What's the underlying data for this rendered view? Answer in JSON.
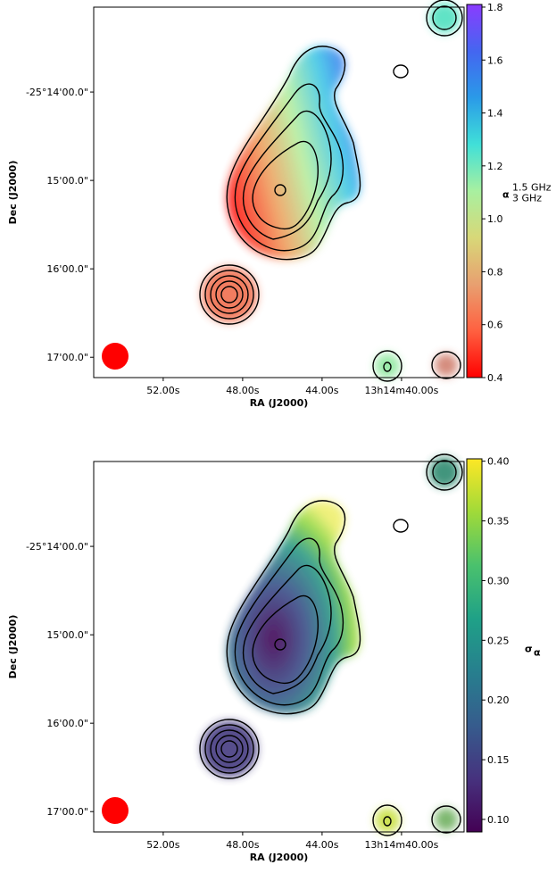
{
  "chart_data": [
    {
      "type": "image",
      "xlabel": "RA (J2000)",
      "ylabel": "Dec (J2000)",
      "xlim": [
        55.5,
        36.85
      ],
      "xticks": [
        {
          "value": 52,
          "label": "52.00s"
        },
        {
          "value": 48,
          "label": "48.00s"
        },
        {
          "value": 44,
          "label": "44.00s"
        },
        {
          "value": 40,
          "label": "13h14m40.00s"
        }
      ],
      "ylim": [
        -17.23,
        -13.04
      ],
      "yticks": [
        {
          "value": -14,
          "label": "-25°14'00.0\""
        },
        {
          "value": -15,
          "label": "15'00.0\""
        },
        {
          "value": -16,
          "label": "16'00.0\""
        },
        {
          "value": -17,
          "label": "17'00.0\""
        }
      ],
      "colorbar": {
        "label": "α",
        "label_sup": "1.5 GHz",
        "label_sub": "3 GHz",
        "lim": [
          0.4,
          1.81
        ],
        "ticks": [
          0.4,
          0.6,
          0.8,
          {
            "value": 1,
            "label": "1.0"
          },
          1.2,
          1.4,
          1.6,
          1.8
        ],
        "colors": [
          "#ff0000",
          "#ff6040",
          "#e8a070",
          "#d8d878",
          "#a8f0a0",
          "#40e0d8",
          "#2a9ae8",
          "#4466f0",
          "#8a3cff"
        ]
      }
    },
    {
      "type": "image",
      "xlabel": "RA (J2000)",
      "ylabel": "Dec (J2000)",
      "xlim": [
        55.5,
        36.85
      ],
      "xticks": [
        {
          "value": 52,
          "label": "52.00s"
        },
        {
          "value": 48,
          "label": "48.00s"
        },
        {
          "value": 44,
          "label": "44.00s"
        },
        {
          "value": 40,
          "label": "13h14m40.00s"
        }
      ],
      "ylim": [
        -17.23,
        -13.04
      ],
      "yticks": [
        {
          "value": -14,
          "label": "-25°14'00.0\""
        },
        {
          "value": -15,
          "label": "15'00.0\""
        },
        {
          "value": -16,
          "label": "16'00.0\""
        },
        {
          "value": -17,
          "label": "17'00.0\""
        }
      ],
      "colorbar": {
        "label": "σ",
        "label_sub": "α",
        "lim": [
          0.0895,
          0.402
        ],
        "ticks": [
          {
            "value": 0.1,
            "label": "0.10"
          },
          {
            "value": 0.15,
            "label": "0.15"
          },
          {
            "value": 0.2,
            "label": "0.20"
          },
          {
            "value": 0.25,
            "label": "0.25"
          },
          {
            "value": 0.3,
            "label": "0.30"
          },
          {
            "value": 0.35,
            "label": "0.35"
          },
          {
            "value": 0.4,
            "label": "0.40"
          }
        ],
        "colors": [
          "#440154",
          "#46327e",
          "#365c8d",
          "#277f8e",
          "#1fa187",
          "#4ac16d",
          "#a0da39",
          "#fde725"
        ]
      }
    }
  ]
}
